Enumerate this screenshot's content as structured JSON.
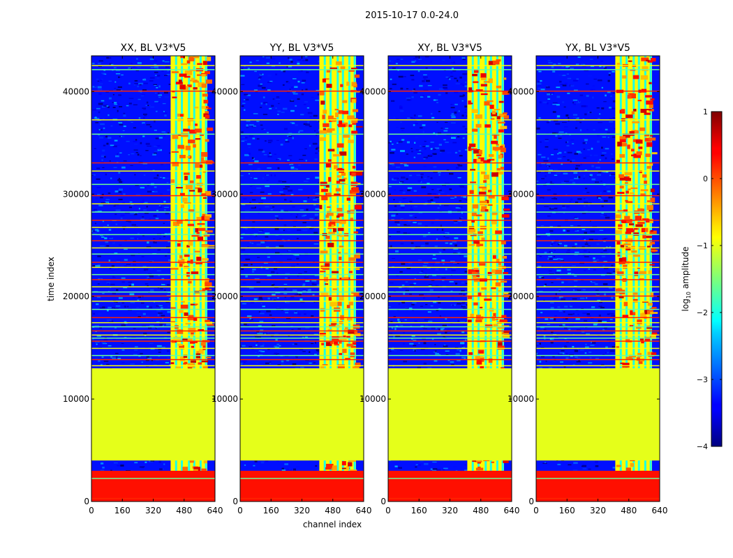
{
  "figure": {
    "suptitle": "2015-10-17 0.0-24.0",
    "xlabel": "channel index",
    "ylabel": "time index",
    "colorbar_label_prefix": "log",
    "colorbar_label_sub": "10",
    "colorbar_label_suffix": " amplitude"
  },
  "chart_data": {
    "type": "heatmap",
    "panels": [
      {
        "title": "XX, BL V3*V5",
        "pol": "XX"
      },
      {
        "title": "YY, BL V3*V5",
        "pol": "YY"
      },
      {
        "title": "XY, BL V3*V5",
        "pol": "XY"
      },
      {
        "title": "YX, BL V3*V5",
        "pol": "YX"
      }
    ],
    "x": {
      "label": "channel index",
      "lim": [
        0,
        640
      ],
      "ticks": [
        0,
        160,
        320,
        480,
        640
      ],
      "tick_labels": [
        "0",
        "160",
        "320",
        "480",
        "640"
      ]
    },
    "y": {
      "label": "time index",
      "lim": [
        0,
        43500
      ],
      "ticks": [
        0,
        10000,
        20000,
        30000,
        40000
      ],
      "tick_labels": [
        "0",
        "10000",
        "20000",
        "30000",
        "40000"
      ]
    },
    "colorbar": {
      "label": "log10 amplitude",
      "lim": [
        -4,
        1
      ],
      "ticks": [
        -4,
        -3,
        -2,
        -1,
        0,
        1
      ],
      "tick_labels": [
        "−4",
        "−3",
        "−2",
        "−1",
        "0",
        "1"
      ],
      "colormap": "jet"
    },
    "regions": {
      "flagged_low_time_range": [
        0,
        3000
      ],
      "flagged_low_value": 0.3,
      "uniform_mid_time_range": [
        4000,
        13000
      ],
      "uniform_mid_value": -1.0,
      "rfi_channel_range": [
        410,
        600
      ],
      "background_value": -3.3
    },
    "hline_times": [
      350,
      2300,
      13300,
      13900,
      14300,
      15000,
      15700,
      16000,
      16300,
      16700,
      17100,
      17500,
      18000,
      18800,
      19600,
      20100,
      20500,
      21000,
      21700,
      22200,
      22900,
      23400,
      24200,
      24800,
      25500,
      26100,
      26800,
      27500,
      28300,
      29100,
      29900,
      31000,
      32300,
      33100,
      35900,
      37300,
      40100,
      42200,
      42600
    ]
  }
}
